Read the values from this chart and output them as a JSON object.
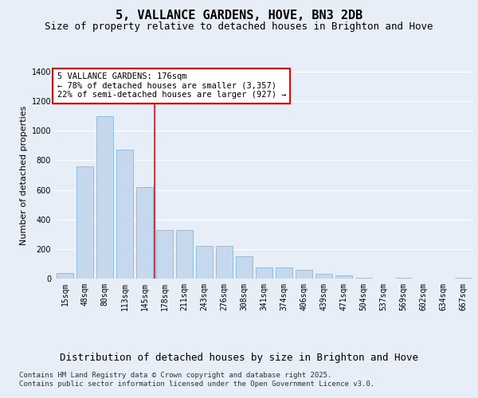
{
  "title": "5, VALLANCE GARDENS, HOVE, BN3 2DB",
  "subtitle": "Size of property relative to detached houses in Brighton and Hove",
  "xlabel": "Distribution of detached houses by size in Brighton and Hove",
  "ylabel": "Number of detached properties",
  "categories": [
    "15sqm",
    "48sqm",
    "80sqm",
    "113sqm",
    "145sqm",
    "178sqm",
    "211sqm",
    "243sqm",
    "276sqm",
    "308sqm",
    "341sqm",
    "374sqm",
    "406sqm",
    "439sqm",
    "471sqm",
    "504sqm",
    "537sqm",
    "569sqm",
    "602sqm",
    "634sqm",
    "667sqm"
  ],
  "values": [
    40,
    760,
    1100,
    870,
    620,
    330,
    330,
    220,
    220,
    150,
    75,
    75,
    60,
    35,
    20,
    5,
    0,
    5,
    0,
    0,
    5
  ],
  "bar_color": "#c5d8ed",
  "bar_edge_color": "#7aadd4",
  "red_line_index": 5,
  "red_line_label": "5 VALLANCE GARDENS: 176sqm",
  "annotation_line1": "← 78% of detached houses are smaller (3,357)",
  "annotation_line2": "22% of semi-detached houses are larger (927) →",
  "ylim": [
    0,
    1400
  ],
  "yticks": [
    0,
    200,
    400,
    600,
    800,
    1000,
    1200,
    1400
  ],
  "background_color": "#e8eef8",
  "plot_background": "#e8eef8",
  "grid_color": "#ffffff",
  "footer": "Contains HM Land Registry data © Crown copyright and database right 2025.\nContains public sector information licensed under the Open Government Licence v3.0.",
  "title_fontsize": 11,
  "subtitle_fontsize": 9,
  "xlabel_fontsize": 9,
  "ylabel_fontsize": 8,
  "tick_fontsize": 7,
  "annotation_fontsize": 7.5,
  "footer_fontsize": 6.5
}
